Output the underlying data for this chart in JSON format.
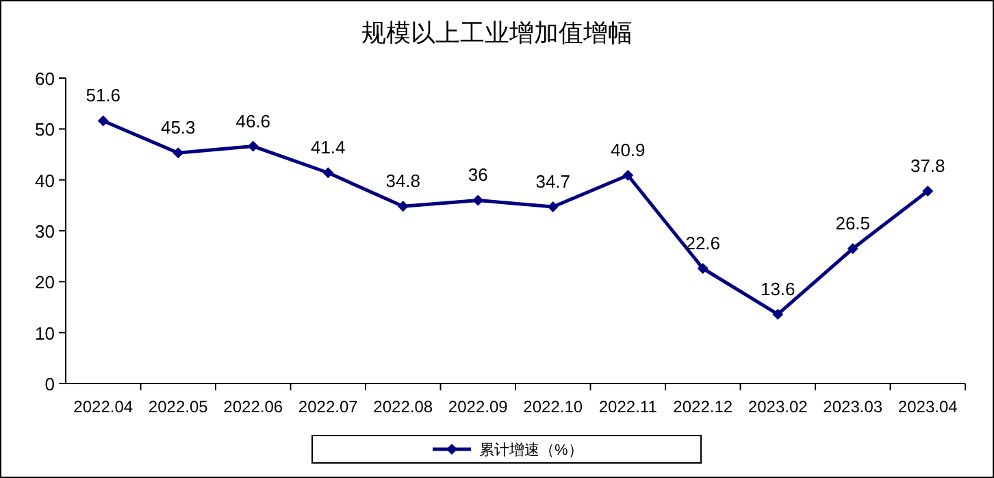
{
  "chart_data": {
    "type": "line",
    "title": "规模以上工业增加值增幅",
    "categories": [
      "2022.04",
      "2022.05",
      "2022.06",
      "2022.07",
      "2022.08",
      "2022.09",
      "2022.10",
      "2022.11",
      "2022.12",
      "2023.02",
      "2023.03",
      "2023.04"
    ],
    "series": [
      {
        "name": "累计增速（%）",
        "color": "#000080",
        "values": [
          51.6,
          45.3,
          46.6,
          41.4,
          34.8,
          36,
          34.7,
          40.9,
          22.6,
          13.6,
          26.5,
          37.8
        ]
      }
    ],
    "ylim": [
      0,
      60
    ],
    "yticks": [
      0,
      10,
      20,
      30,
      40,
      50,
      60
    ],
    "data_labels": true,
    "marker": "diamond",
    "line_style": "solid",
    "legend": "bottom"
  }
}
